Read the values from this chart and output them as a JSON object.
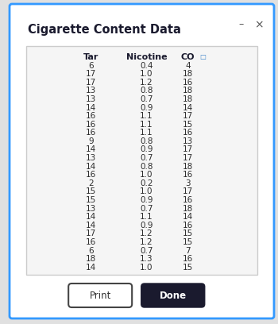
{
  "title": "Cigarette Content Data",
  "columns": [
    "Tar",
    "Nicotine",
    "CO"
  ],
  "rows": [
    [
      6,
      0.4,
      4
    ],
    [
      17,
      1.0,
      18
    ],
    [
      17,
      1.2,
      16
    ],
    [
      13,
      0.8,
      18
    ],
    [
      13,
      0.7,
      18
    ],
    [
      14,
      0.9,
      14
    ],
    [
      16,
      1.1,
      17
    ],
    [
      16,
      1.1,
      15
    ],
    [
      16,
      1.1,
      16
    ],
    [
      9,
      0.8,
      13
    ],
    [
      14,
      0.9,
      17
    ],
    [
      13,
      0.7,
      17
    ],
    [
      14,
      0.8,
      18
    ],
    [
      16,
      1.0,
      16
    ],
    [
      2,
      0.2,
      3
    ],
    [
      15,
      1.0,
      17
    ],
    [
      15,
      0.9,
      16
    ],
    [
      13,
      0.7,
      18
    ],
    [
      14,
      1.1,
      14
    ],
    [
      14,
      0.9,
      16
    ],
    [
      17,
      1.2,
      15
    ],
    [
      16,
      1.2,
      15
    ],
    [
      6,
      0.7,
      7
    ],
    [
      18,
      1.3,
      16
    ],
    [
      14,
      1.0,
      15
    ]
  ],
  "bg_color": "#e0e0e0",
  "dialog_bg": "#ffffff",
  "dialog_border": "#3399ff",
  "title_color": "#1a1a2e",
  "text_color": "#2d2d2d",
  "table_bg": "#f5f5f5",
  "table_border": "#cccccc",
  "print_btn_color": "#ffffff",
  "print_btn_border": "#444444",
  "done_btn_color": "#1a1a2e",
  "done_btn_text": "#ffffff",
  "title_fontsize": 10.5,
  "header_fontsize": 8,
  "data_fontsize": 7.5,
  "button_fontsize": 8.5,
  "figw": 3.5,
  "figh": 4.08,
  "dpi": 100
}
